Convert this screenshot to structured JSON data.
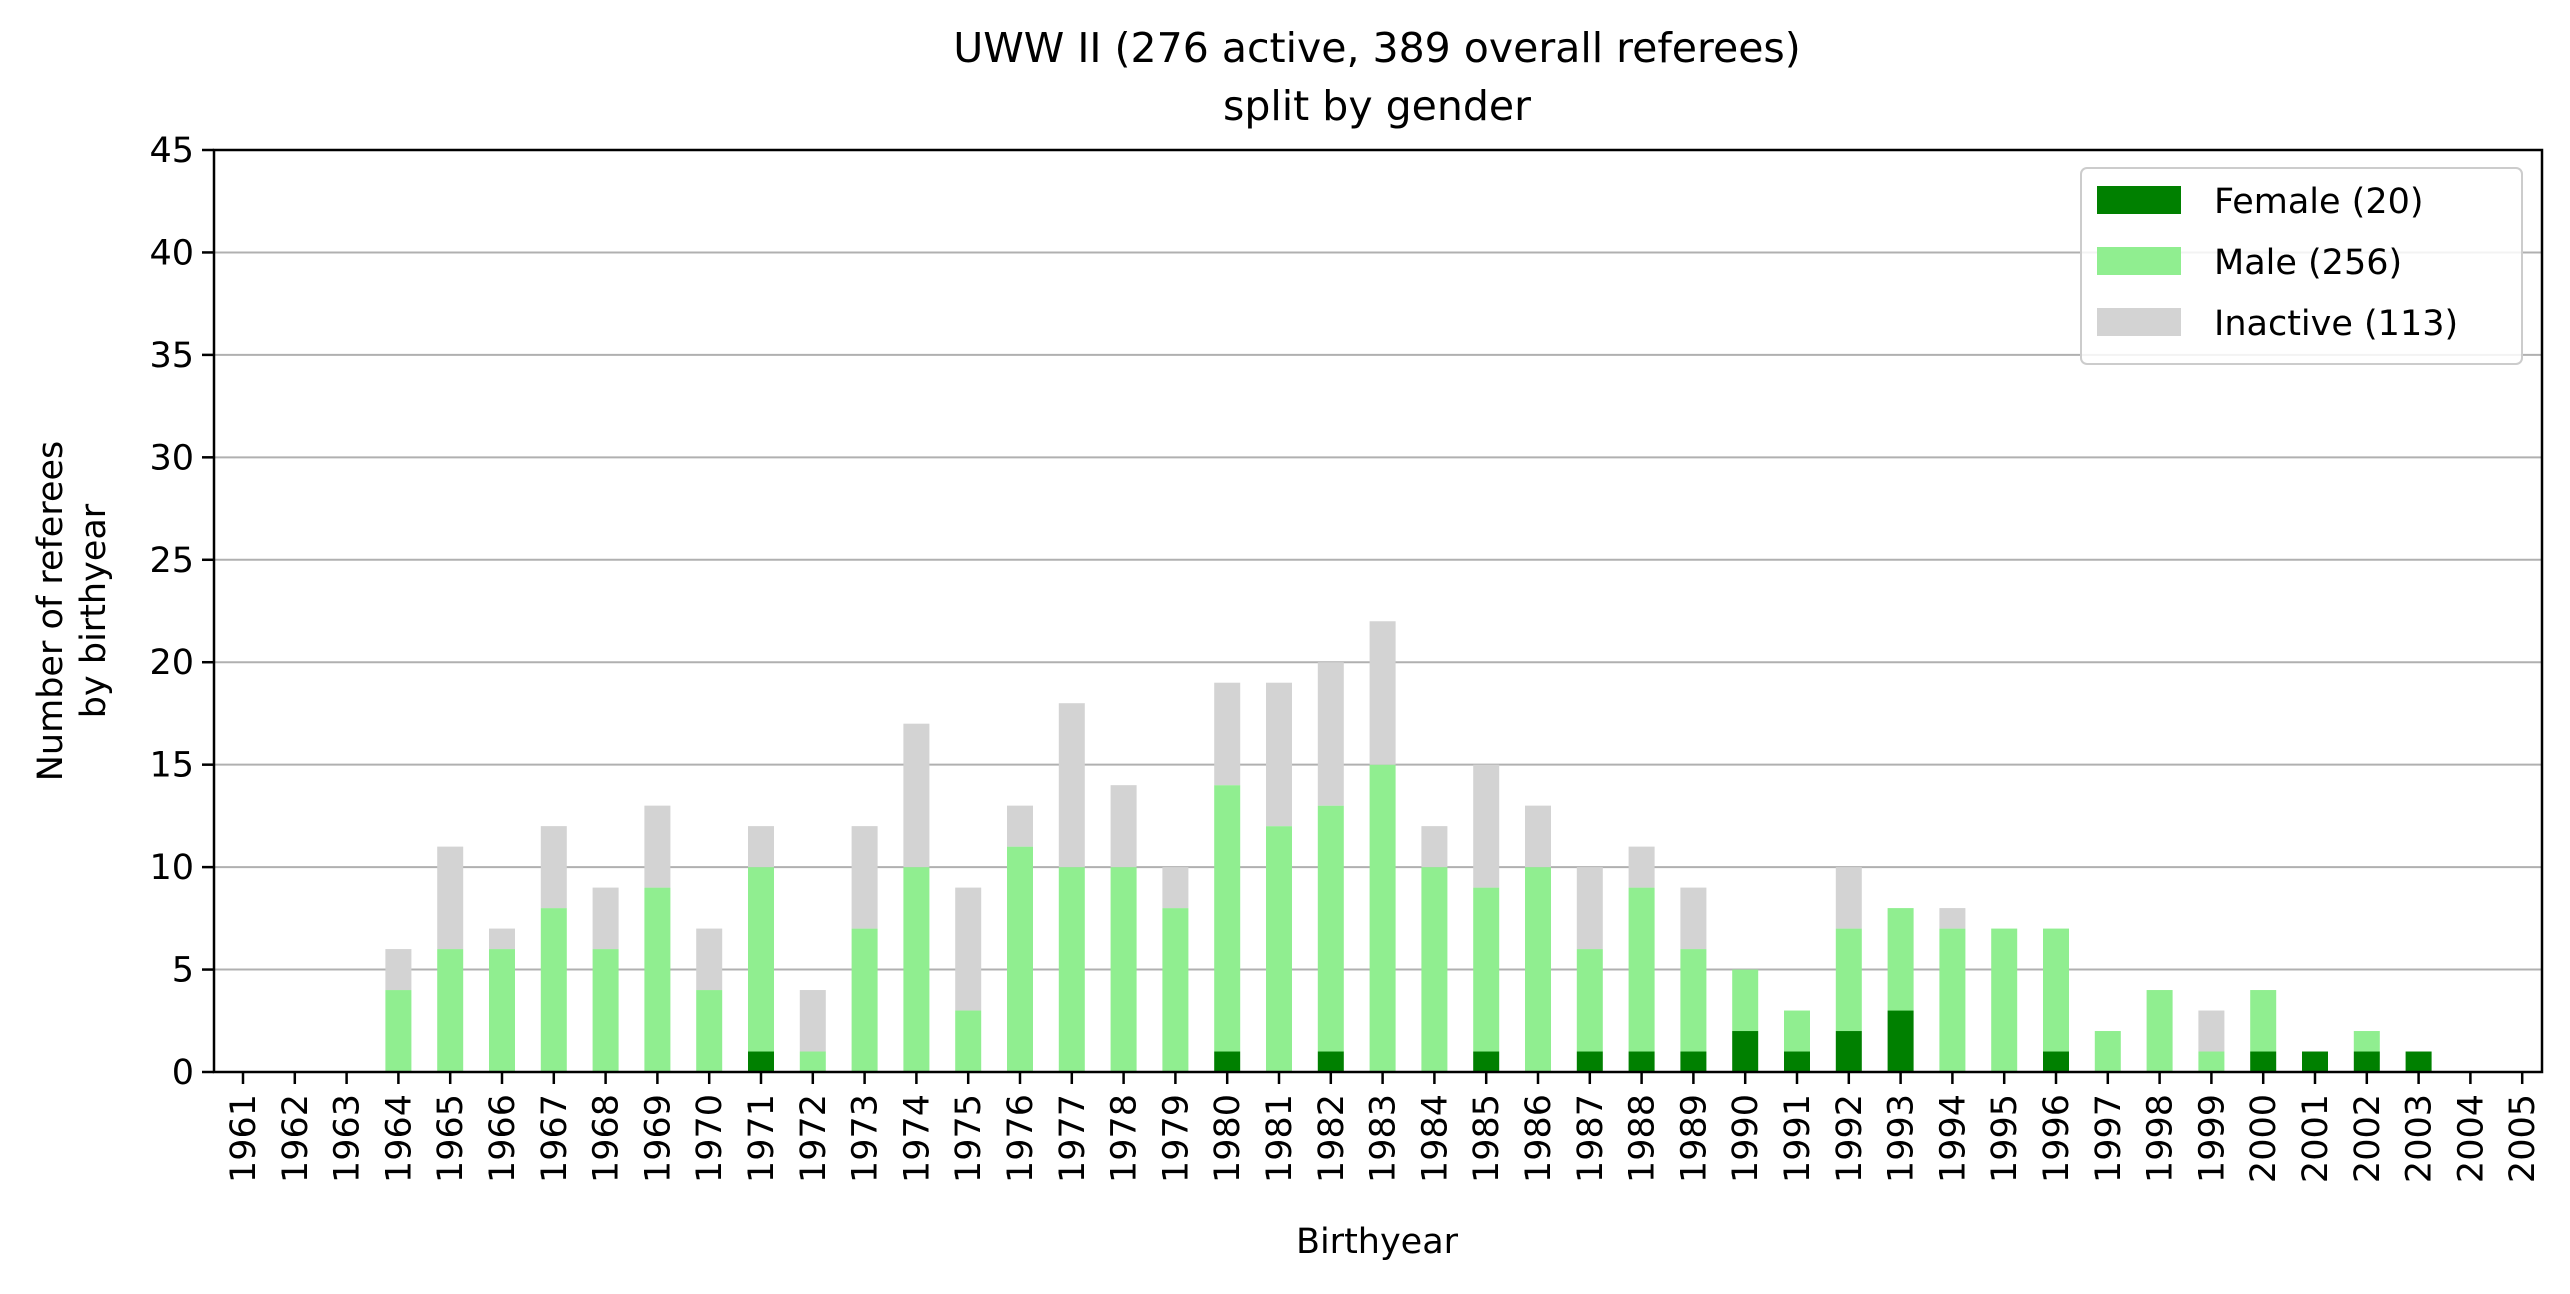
{
  "chart_data": {
    "type": "bar",
    "stacked": true,
    "title": "UWW II (276 active, 389 overall referees)",
    "subtitle": "split by gender",
    "xlabel": "Birthyear",
    "ylabel": "Number of referees by birthyear",
    "ylabel_lines": [
      "Number of referees",
      "by birthyear"
    ],
    "ylim": [
      0,
      45
    ],
    "yticks": [
      0,
      5,
      10,
      15,
      20,
      25,
      30,
      35,
      40,
      45
    ],
    "grid": "y",
    "legend_position": "top-right",
    "categories": [
      "1961",
      "1962",
      "1963",
      "1964",
      "1965",
      "1966",
      "1967",
      "1968",
      "1969",
      "1970",
      "1971",
      "1972",
      "1973",
      "1974",
      "1975",
      "1976",
      "1977",
      "1978",
      "1979",
      "1980",
      "1981",
      "1982",
      "1983",
      "1984",
      "1985",
      "1986",
      "1987",
      "1988",
      "1989",
      "1990",
      "1991",
      "1992",
      "1993",
      "1994",
      "1995",
      "1996",
      "1997",
      "1998",
      "1999",
      "2000",
      "2001",
      "2002",
      "2003",
      "2004",
      "2005"
    ],
    "series": [
      {
        "name": "Female (20)",
        "color": "#008000",
        "values": [
          0,
          0,
          0,
          0,
          0,
          0,
          0,
          0,
          0,
          0,
          1,
          0,
          0,
          0,
          0,
          0,
          0,
          0,
          0,
          1,
          0,
          1,
          0,
          0,
          1,
          0,
          1,
          1,
          1,
          2,
          1,
          2,
          3,
          0,
          0,
          1,
          0,
          0,
          0,
          1,
          1,
          1,
          1,
          0,
          0
        ]
      },
      {
        "name": "Male (256)",
        "color": "#90ee90",
        "values": [
          0,
          0,
          0,
          4,
          6,
          6,
          8,
          6,
          9,
          4,
          9,
          1,
          7,
          10,
          3,
          11,
          10,
          10,
          8,
          13,
          12,
          12,
          15,
          10,
          8,
          10,
          5,
          8,
          5,
          3,
          2,
          5,
          5,
          7,
          7,
          6,
          2,
          4,
          1,
          3,
          0,
          1,
          0,
          0,
          0
        ]
      },
      {
        "name": "Inactive (113)",
        "color": "#d3d3d3",
        "values": [
          0,
          0,
          0,
          2,
          5,
          1,
          4,
          3,
          4,
          3,
          2,
          3,
          5,
          7,
          6,
          2,
          8,
          4,
          2,
          5,
          7,
          7,
          7,
          2,
          6,
          3,
          4,
          2,
          3,
          0,
          0,
          3,
          0,
          1,
          0,
          0,
          0,
          0,
          2,
          0,
          0,
          0,
          0,
          0,
          0
        ]
      }
    ]
  }
}
